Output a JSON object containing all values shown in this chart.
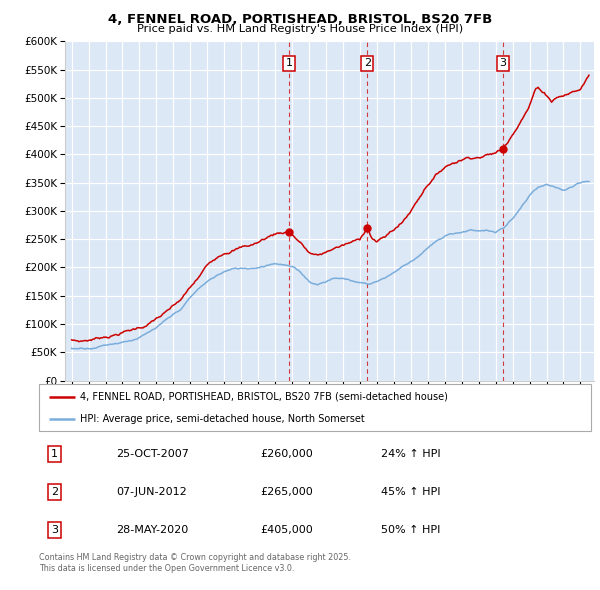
{
  "title": "4, FENNEL ROAD, PORTISHEAD, BRISTOL, BS20 7FB",
  "subtitle": "Price paid vs. HM Land Registry's House Price Index (HPI)",
  "property_label": "4, FENNEL ROAD, PORTISHEAD, BRISTOL, BS20 7FB (semi-detached house)",
  "hpi_label": "HPI: Average price, semi-detached house, North Somerset",
  "sale_info": [
    {
      "label": "1",
      "date": "25-OCT-2007",
      "price": "£260,000",
      "pct": "24% ↑ HPI",
      "year": 2007.82
    },
    {
      "label": "2",
      "date": "07-JUN-2012",
      "price": "£265,000",
      "pct": "45% ↑ HPI",
      "year": 2012.44
    },
    {
      "label": "3",
      "date": "28-MAY-2020",
      "price": "£405,000",
      "pct": "50% ↑ HPI",
      "year": 2020.41
    }
  ],
  "property_color": "#cc0000",
  "hpi_color": "#7aaddc",
  "ylim": [
    0,
    600000
  ],
  "yticks": [
    0,
    50000,
    100000,
    150000,
    200000,
    250000,
    300000,
    350000,
    400000,
    450000,
    500000,
    550000,
    600000
  ],
  "footnote": "Contains HM Land Registry data © Crown copyright and database right 2025.\nThis data is licensed under the Open Government Licence v3.0.",
  "background_color": "#dce8f5",
  "prop_keypoints": [
    [
      1995.0,
      72000
    ],
    [
      1995.5,
      70000
    ],
    [
      1996.0,
      72000
    ],
    [
      1996.5,
      75000
    ],
    [
      1997.0,
      79000
    ],
    [
      1997.5,
      82000
    ],
    [
      1998.0,
      87000
    ],
    [
      1998.5,
      90000
    ],
    [
      1999.0,
      95000
    ],
    [
      1999.5,
      100000
    ],
    [
      2000.0,
      110000
    ],
    [
      2000.5,
      118000
    ],
    [
      2001.0,
      128000
    ],
    [
      2001.5,
      140000
    ],
    [
      2002.0,
      158000
    ],
    [
      2002.5,
      175000
    ],
    [
      2003.0,
      195000
    ],
    [
      2003.5,
      210000
    ],
    [
      2004.0,
      222000
    ],
    [
      2004.5,
      228000
    ],
    [
      2005.0,
      232000
    ],
    [
      2005.5,
      235000
    ],
    [
      2006.0,
      240000
    ],
    [
      2006.5,
      248000
    ],
    [
      2007.0,
      255000
    ],
    [
      2007.5,
      258000
    ],
    [
      2007.82,
      260000
    ],
    [
      2008.0,
      255000
    ],
    [
      2008.5,
      240000
    ],
    [
      2009.0,
      222000
    ],
    [
      2009.5,
      215000
    ],
    [
      2010.0,
      220000
    ],
    [
      2010.5,
      228000
    ],
    [
      2011.0,
      232000
    ],
    [
      2011.5,
      236000
    ],
    [
      2012.0,
      240000
    ],
    [
      2012.44,
      265000
    ],
    [
      2012.7,
      245000
    ],
    [
      2013.0,
      238000
    ],
    [
      2013.5,
      245000
    ],
    [
      2014.0,
      258000
    ],
    [
      2014.5,
      270000
    ],
    [
      2015.0,
      290000
    ],
    [
      2015.5,
      315000
    ],
    [
      2016.0,
      340000
    ],
    [
      2016.5,
      355000
    ],
    [
      2017.0,
      370000
    ],
    [
      2017.5,
      378000
    ],
    [
      2018.0,
      385000
    ],
    [
      2018.5,
      390000
    ],
    [
      2019.0,
      392000
    ],
    [
      2019.5,
      395000
    ],
    [
      2020.0,
      398000
    ],
    [
      2020.41,
      405000
    ],
    [
      2020.7,
      418000
    ],
    [
      2021.0,
      435000
    ],
    [
      2021.5,
      460000
    ],
    [
      2022.0,
      485000
    ],
    [
      2022.3,
      510000
    ],
    [
      2022.5,
      518000
    ],
    [
      2022.7,
      512000
    ],
    [
      2023.0,
      505000
    ],
    [
      2023.3,
      495000
    ],
    [
      2023.6,
      502000
    ],
    [
      2024.0,
      505000
    ],
    [
      2024.5,
      510000
    ],
    [
      2025.0,
      515000
    ],
    [
      2025.5,
      540000
    ]
  ],
  "hpi_keypoints": [
    [
      1995.0,
      57000
    ],
    [
      1995.5,
      58000
    ],
    [
      1996.0,
      60000
    ],
    [
      1996.5,
      63000
    ],
    [
      1997.0,
      67000
    ],
    [
      1997.5,
      70000
    ],
    [
      1998.0,
      74000
    ],
    [
      1998.5,
      78000
    ],
    [
      1999.0,
      83000
    ],
    [
      1999.5,
      90000
    ],
    [
      2000.0,
      98000
    ],
    [
      2000.5,
      108000
    ],
    [
      2001.0,
      118000
    ],
    [
      2001.5,
      130000
    ],
    [
      2002.0,
      148000
    ],
    [
      2002.5,
      163000
    ],
    [
      2003.0,
      175000
    ],
    [
      2003.5,
      185000
    ],
    [
      2004.0,
      193000
    ],
    [
      2004.5,
      197000
    ],
    [
      2005.0,
      198000
    ],
    [
      2005.5,
      199000
    ],
    [
      2006.0,
      202000
    ],
    [
      2006.5,
      207000
    ],
    [
      2007.0,
      212000
    ],
    [
      2007.5,
      210000
    ],
    [
      2008.0,
      205000
    ],
    [
      2008.5,
      195000
    ],
    [
      2009.0,
      180000
    ],
    [
      2009.5,
      175000
    ],
    [
      2010.0,
      182000
    ],
    [
      2010.5,
      188000
    ],
    [
      2011.0,
      187000
    ],
    [
      2011.5,
      183000
    ],
    [
      2012.0,
      180000
    ],
    [
      2012.5,
      178000
    ],
    [
      2013.0,
      183000
    ],
    [
      2013.5,
      190000
    ],
    [
      2014.0,
      200000
    ],
    [
      2014.5,
      210000
    ],
    [
      2015.0,
      220000
    ],
    [
      2015.5,
      232000
    ],
    [
      2016.0,
      245000
    ],
    [
      2016.5,
      255000
    ],
    [
      2017.0,
      263000
    ],
    [
      2017.5,
      268000
    ],
    [
      2018.0,
      272000
    ],
    [
      2018.5,
      275000
    ],
    [
      2019.0,
      275000
    ],
    [
      2019.5,
      276000
    ],
    [
      2020.0,
      272000
    ],
    [
      2020.5,
      280000
    ],
    [
      2021.0,
      295000
    ],
    [
      2021.5,
      315000
    ],
    [
      2022.0,
      335000
    ],
    [
      2022.5,
      348000
    ],
    [
      2023.0,
      352000
    ],
    [
      2023.5,
      345000
    ],
    [
      2024.0,
      340000
    ],
    [
      2024.5,
      345000
    ],
    [
      2025.0,
      350000
    ],
    [
      2025.5,
      352000
    ]
  ]
}
